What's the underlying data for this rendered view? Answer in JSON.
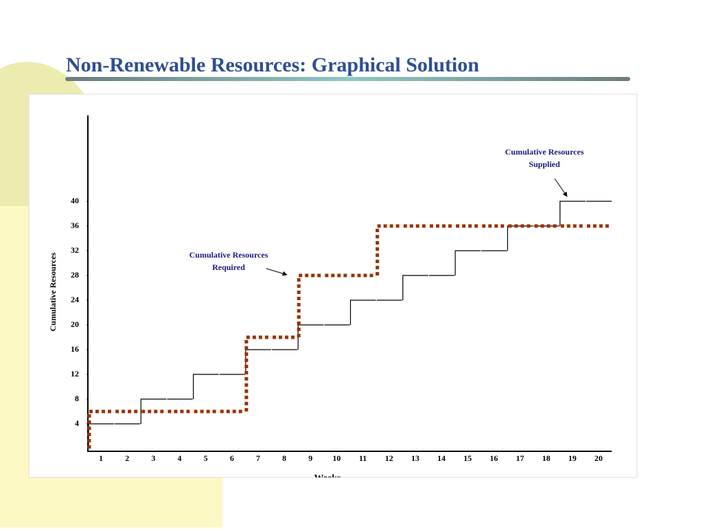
{
  "title": "Non-Renewable Resources:  Graphical Solution",
  "chart_data": {
    "type": "step",
    "ylabel": "Cumulative Resources",
    "xlabel": "Weeks",
    "categories": [
      "1",
      "2",
      "3",
      "4",
      "5",
      "6",
      "7",
      "8",
      "9",
      "10",
      "11",
      "12",
      "13",
      "14",
      "15",
      "16",
      "17",
      "18",
      "19",
      "20"
    ],
    "series": [
      {
        "name": "Cumulative Resources Supplied",
        "color": "#000000",
        "dash": false,
        "values": [
          4,
          4,
          8,
          8,
          12,
          12,
          16,
          16,
          20,
          20,
          24,
          24,
          28,
          28,
          32,
          32,
          36,
          36,
          40,
          40
        ]
      },
      {
        "name": "Cumulative Resources Required",
        "color": "#993300",
        "dash": true,
        "values": [
          6,
          6,
          6,
          6,
          6,
          6,
          18,
          18,
          28,
          28,
          28,
          36,
          36,
          36,
          36,
          36,
          36,
          36,
          36,
          36
        ]
      }
    ],
    "ylim": [
      0,
      54
    ],
    "yticks": [
      4,
      8,
      12,
      16,
      20,
      24,
      28,
      32,
      36,
      40
    ]
  }
}
